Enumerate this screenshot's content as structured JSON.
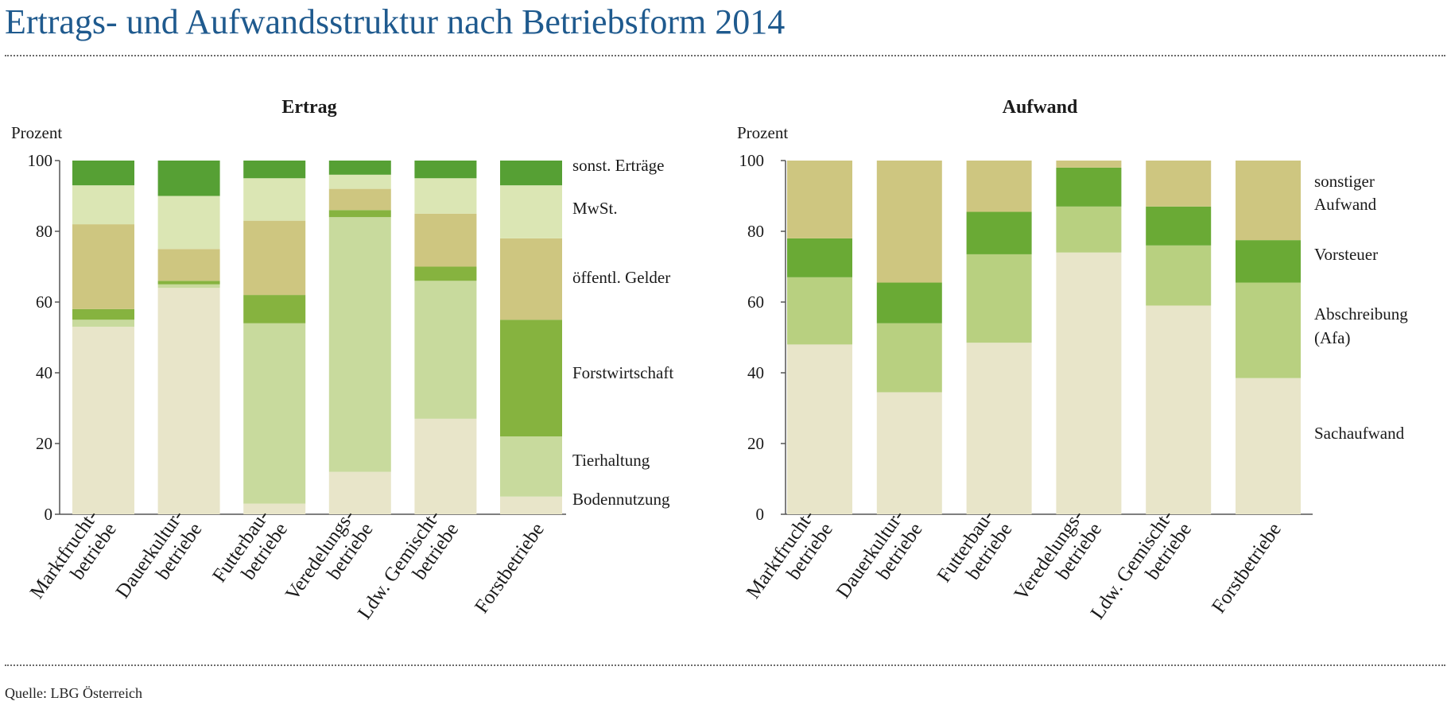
{
  "title": "Ertrags- und Aufwandsstruktur nach Betriebsform 2014",
  "source": "Quelle: LBG Österreich",
  "categories": [
    [
      "Marktfrucht-",
      "betriebe"
    ],
    [
      "Dauerkultur-",
      "betriebe"
    ],
    [
      "Futterbau-",
      "betriebe"
    ],
    [
      "Veredelungs-",
      "betriebe"
    ],
    [
      "Ldw. Gemischt-",
      "betriebe"
    ],
    [
      "Forstbetriebe"
    ]
  ],
  "chart_data": [
    {
      "type": "bar",
      "stacked": true,
      "title": "Ertrag",
      "ylabel": "Prozent",
      "ylim": [
        0,
        100
      ],
      "yticks": [
        0,
        20,
        40,
        60,
        80,
        100
      ],
      "legend_placement": "right",
      "categories": [
        "Marktfruchtbetriebe",
        "Dauerkulturbetriebe",
        "Futterbaubetriebe",
        "Veredelungsbetriebe",
        "Ldw. Gemischtbetriebe",
        "Forstbetriebe"
      ],
      "series": [
        {
          "name": "Bodennutzung",
          "label": [
            "Bodennutzung"
          ],
          "color": "#e8e5c9",
          "values": [
            53,
            64,
            3,
            12,
            27,
            5
          ]
        },
        {
          "name": "Tierhaltung",
          "label": [
            "Tierhaltung"
          ],
          "color": "#c8da9d",
          "values": [
            2,
            1,
            51,
            72,
            39,
            17
          ]
        },
        {
          "name": "Forstwirtschaft",
          "label": [
            "Forstwirtschaft"
          ],
          "color": "#86b33f",
          "values": [
            3,
            1,
            8,
            2,
            4,
            33
          ]
        },
        {
          "name": "öffentl. Gelder",
          "label": [
            "öffentl. Gelder"
          ],
          "color": "#cec680",
          "values": [
            24,
            9,
            21,
            6,
            15,
            23
          ]
        },
        {
          "name": "MwSt.",
          "label": [
            "MwSt."
          ],
          "color": "#dbe6b4",
          "values": [
            11,
            15,
            12,
            4,
            10,
            15
          ]
        },
        {
          "name": "sonst. Erträge",
          "label": [
            "sonst. Erträge"
          ],
          "color": "#56a034",
          "values": [
            7,
            10,
            5,
            4,
            5,
            7
          ]
        }
      ]
    },
    {
      "type": "bar",
      "stacked": true,
      "title": "Aufwand",
      "ylabel": "Prozent",
      "ylim": [
        0,
        100
      ],
      "yticks": [
        0,
        20,
        40,
        60,
        80,
        100
      ],
      "legend_placement": "right",
      "categories": [
        "Marktfruchtbetriebe",
        "Dauerkulturbetriebe",
        "Futterbaubetriebe",
        "Veredelungsbetriebe",
        "Ldw. Gemischtbetriebe",
        "Forstbetriebe"
      ],
      "series": [
        {
          "name": "Sachaufwand",
          "label": [
            "Sachaufwand"
          ],
          "color": "#e8e5c9",
          "values": [
            48,
            34.5,
            48.5,
            74,
            59,
            38.5
          ]
        },
        {
          "name": "Abschreibung (Afa)",
          "label": [
            "Abschreibung",
            "(Afa)"
          ],
          "color": "#b8d080",
          "values": [
            19,
            19.5,
            25,
            13,
            17,
            27
          ]
        },
        {
          "name": "Vorsteuer",
          "label": [
            "Vorsteuer"
          ],
          "color": "#6aaa35",
          "values": [
            11,
            11.5,
            12,
            11,
            11,
            12
          ]
        },
        {
          "name": "sonstiger Aufwand",
          "label": [
            "sonstiger",
            "Aufwand"
          ],
          "color": "#cec680",
          "values": [
            22,
            34.5,
            14.5,
            2,
            13,
            22.5
          ]
        }
      ]
    }
  ]
}
